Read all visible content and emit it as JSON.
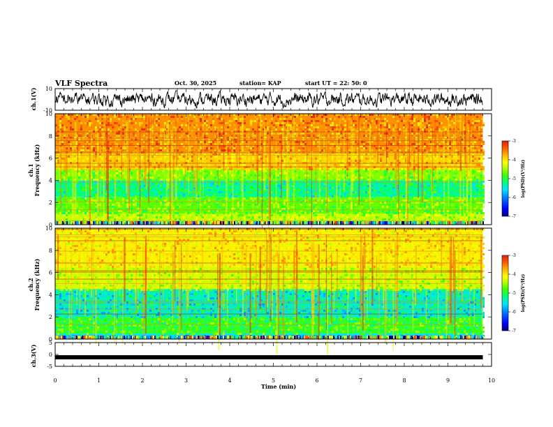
{
  "header": {
    "title": "VLF Spectra",
    "date": "Oct. 30, 2025",
    "station": "station= KAP",
    "start_time": "start  UT  =   22: 50: 0"
  },
  "chart_data": {
    "type": "heatmap",
    "title": "VLF Spectra",
    "xlabel": "Time  (min)",
    "xlim": [
      0,
      10
    ],
    "x_ticks": [
      "0",
      "1",
      "2",
      "3",
      "4",
      "5",
      "6",
      "7",
      "8",
      "9",
      "10"
    ],
    "record_end_min": 9.8,
    "panels": [
      {
        "name": "ch1-waveform",
        "type": "line",
        "ylabel": "ch.1(V)",
        "ylim": [
          -10,
          10
        ],
        "y_ticks": [
          "10",
          "-10"
        ],
        "amplitude_range_v": [
          -8,
          8
        ]
      },
      {
        "name": "ch1-spectrogram",
        "type": "heatmap",
        "ylabel": "ch.1\nFrequency  (kHz)",
        "ylim": [
          0,
          10
        ],
        "y_ticks": [
          "0",
          "2",
          "4",
          "6",
          "8",
          "10"
        ],
        "colorbar": {
          "label": "log(PSD)(V²/Hz)",
          "range": [
            -7,
            -3
          ],
          "ticks": [
            "-3",
            "-4",
            "-5",
            "-6",
            "-7"
          ]
        },
        "bands": [
          {
            "from_khz": 6.5,
            "to_khz": 10,
            "log_psd": -3.6
          },
          {
            "from_khz": 5.0,
            "to_khz": 6.5,
            "log_psd": -3.9
          },
          {
            "from_khz": 4.0,
            "to_khz": 5.0,
            "log_psd": -4.8
          },
          {
            "from_khz": 2.5,
            "to_khz": 4.0,
            "log_psd": -5.4
          },
          {
            "from_khz": 1.0,
            "to_khz": 2.5,
            "log_psd": -4.9
          },
          {
            "from_khz": 0.0,
            "to_khz": 1.0,
            "log_psd": -4.6
          }
        ]
      },
      {
        "name": "ch2-spectrogram",
        "type": "heatmap",
        "ylabel": "ch.2\nFrequency  (kHz)",
        "ylim": [
          0,
          10
        ],
        "y_ticks": [
          "0",
          "2",
          "4",
          "6",
          "8",
          "10"
        ],
        "colorbar": {
          "label": "log(PSD)(V²/Hz)",
          "range": [
            -7,
            -3
          ],
          "ticks": [
            "-3",
            "-4",
            "-5",
            "-6",
            "-7"
          ]
        },
        "bands": [
          {
            "from_khz": 6.5,
            "to_khz": 10,
            "log_psd": -4.1
          },
          {
            "from_khz": 4.5,
            "to_khz": 6.5,
            "log_psd": -4.5
          },
          {
            "from_khz": 2.0,
            "to_khz": 4.5,
            "log_psd": -5.6
          },
          {
            "from_khz": 0.5,
            "to_khz": 2.0,
            "log_psd": -5.1
          },
          {
            "from_khz": 0.0,
            "to_khz": 0.5,
            "log_psd": -5.8
          }
        ]
      },
      {
        "name": "ch3-waveform",
        "type": "line",
        "ylabel": "ch.3(V)",
        "ylim": [
          -5,
          5
        ],
        "y_ticks": [
          "5",
          "0",
          "-5"
        ],
        "level_v": -1.2
      }
    ]
  },
  "colors": {
    "colormap": [
      "#000080",
      "#0000ff",
      "#0080ff",
      "#00e0ff",
      "#00ff80",
      "#40ff00",
      "#c0ff00",
      "#ffff00",
      "#ffc000",
      "#ff6000",
      "#e02010"
    ]
  }
}
